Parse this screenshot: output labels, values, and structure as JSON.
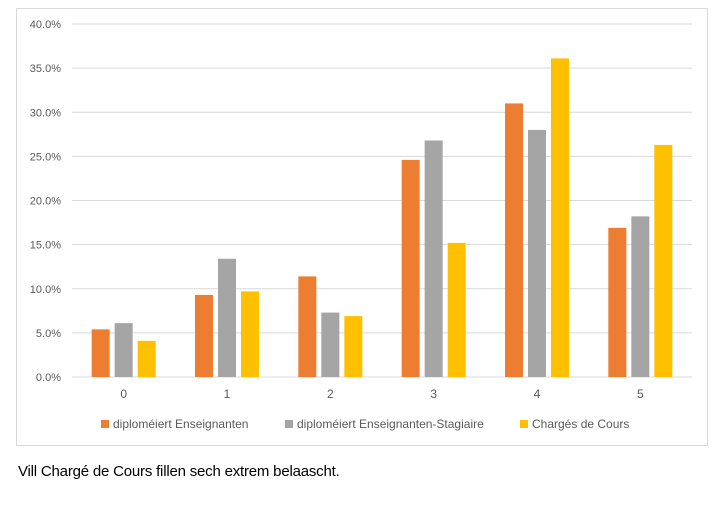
{
  "caption": "Vill Chargé de Cours fillen sech extrem belaascht.",
  "colors": {
    "series": [
      "#ED7D31",
      "#A5A5A5",
      "#FFC000"
    ],
    "grid": "#d9d9d9",
    "axis_text": "#595959"
  },
  "chart_data": {
    "type": "bar",
    "categories": [
      "0",
      "1",
      "2",
      "3",
      "4",
      "5"
    ],
    "series": [
      {
        "name": "diploméiert Enseignanten",
        "values": [
          5.4,
          9.3,
          11.4,
          24.6,
          31.0,
          16.9
        ]
      },
      {
        "name": "diploméiert Enseignanten-Stagiaire",
        "values": [
          6.1,
          13.4,
          7.3,
          26.8,
          28.0,
          18.2
        ]
      },
      {
        "name": "Chargés de Cours",
        "values": [
          4.1,
          9.7,
          6.9,
          15.2,
          36.1,
          26.3
        ]
      }
    ],
    "y_ticks": [
      "0.0%",
      "5.0%",
      "10.0%",
      "15.0%",
      "20.0%",
      "25.0%",
      "30.0%",
      "35.0%",
      "40.0%"
    ],
    "ylim": [
      0,
      40
    ],
    "y_unit": "%",
    "grid": true,
    "legend_position": "bottom",
    "title": "",
    "xlabel": "",
    "ylabel": ""
  }
}
